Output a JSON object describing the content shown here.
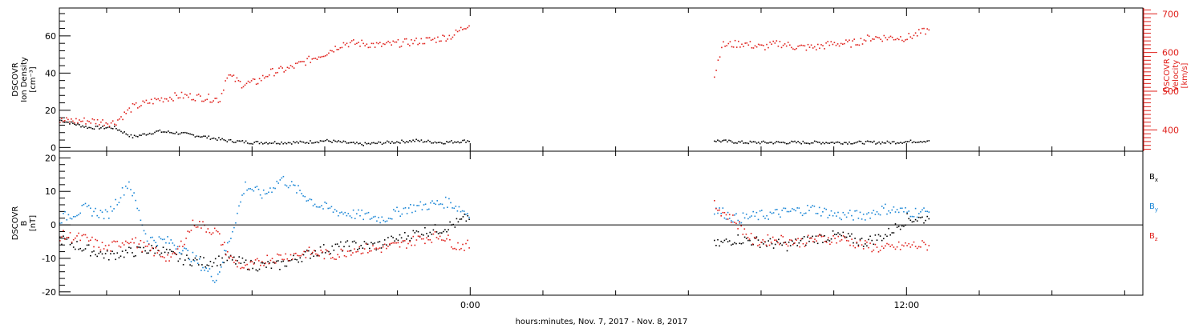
{
  "chart_data": [
    {
      "type": "scatter",
      "panel": "plasma",
      "xlabel": "hours:minutes, Nov.  7, 2017 - Nov.  8, 2017",
      "x_units": "hours relative to Nov. 8, 2017 00:00",
      "xlim": [
        -11.3,
        18.5
      ],
      "x_tick_labels": [
        {
          "x": 0,
          "label": "0:00"
        },
        {
          "x": 12,
          "label": "12:00"
        }
      ],
      "left_axis": {
        "label_lines": [
          "DSCOVR",
          "Ion Density",
          "[cm⁻³]"
        ],
        "ylim": [
          -2,
          75
        ],
        "tick_labels": [
          "0",
          "20",
          "40",
          "60"
        ],
        "color": "#000000"
      },
      "right_axis": {
        "label_lines": [
          "DSCOVR",
          "Velocity",
          "[km/s]"
        ],
        "ylim": [
          345,
          715
        ],
        "tick_labels": [
          "400",
          "500",
          "600",
          "700"
        ],
        "color": "#e0201b"
      },
      "series": [
        {
          "axis": "left",
          "color": "#000000",
          "points": [
            [
              -11.3,
              15
            ],
            [
              -10.5,
              11
            ],
            [
              -9.8,
              11
            ],
            [
              -9.3,
              6
            ],
            [
              -8.6,
              9
            ],
            [
              -8.0,
              8
            ],
            [
              -7.3,
              6
            ],
            [
              -6.7,
              4
            ],
            [
              -6.0,
              3
            ],
            [
              -5.3,
              3
            ],
            [
              -4.6,
              3
            ],
            [
              -4.0,
              4
            ],
            [
              -3.5,
              3
            ],
            [
              -3.0,
              2
            ],
            [
              -2.3,
              3
            ],
            [
              -1.5,
              4
            ],
            [
              -0.8,
              3
            ],
            [
              0.0,
              4
            ],
            [
              6.7,
              4
            ],
            [
              7.5,
              3
            ],
            [
              8.5,
              3
            ],
            [
              9.5,
              3
            ],
            [
              10.5,
              3
            ],
            [
              11.5,
              3
            ],
            [
              12.6,
              4
            ]
          ]
        },
        {
          "axis": "right",
          "color": "#e0201b",
          "points": [
            [
              -11.3,
              425
            ],
            [
              -10.5,
              425
            ],
            [
              -9.8,
              420
            ],
            [
              -9.3,
              460
            ],
            [
              -8.6,
              480
            ],
            [
              -8.0,
              490
            ],
            [
              -7.3,
              485
            ],
            [
              -6.9,
              480
            ],
            [
              -6.7,
              545
            ],
            [
              -6.3,
              520
            ],
            [
              -5.9,
              525
            ],
            [
              -5.5,
              550
            ],
            [
              -5.0,
              560
            ],
            [
              -4.5,
              580
            ],
            [
              -4.0,
              600
            ],
            [
              -3.5,
              625
            ],
            [
              -3.0,
              625
            ],
            [
              -2.5,
              620
            ],
            [
              -2.0,
              625
            ],
            [
              -1.5,
              630
            ],
            [
              -1.0,
              635
            ],
            [
              -0.5,
              645
            ],
            [
              0.0,
              680
            ],
            [
              6.7,
              540
            ],
            [
              6.9,
              620
            ],
            [
              7.5,
              625
            ],
            [
              8.0,
              615
            ],
            [
              8.5,
              625
            ],
            [
              9.0,
              615
            ],
            [
              9.5,
              615
            ],
            [
              10.0,
              625
            ],
            [
              10.5,
              625
            ],
            [
              11.0,
              640
            ],
            [
              11.5,
              640
            ],
            [
              12.0,
              640
            ],
            [
              12.6,
              660
            ]
          ]
        }
      ]
    },
    {
      "type": "scatter",
      "panel": "magnetic field",
      "xlim": [
        -11.3,
        18.5
      ],
      "left_axis": {
        "label_lines": [
          "DSCOVR",
          "B",
          "[nT]"
        ],
        "ylim": [
          -21,
          22
        ],
        "tick_labels": [
          "-20",
          "-10",
          "0",
          "10",
          "20"
        ]
      },
      "zero_line": true,
      "legend": [
        {
          "name": "B",
          "sub": "x",
          "color": "#000000"
        },
        {
          "name": "B",
          "sub": "y",
          "color": "#1a86d6"
        },
        {
          "name": "B",
          "sub": "z",
          "color": "#e0201b"
        }
      ],
      "legend_placement": "right",
      "series": [
        {
          "name": "Bx",
          "color": "#000000",
          "points": [
            [
              -11.3,
              -4
            ],
            [
              -10.6,
              -7
            ],
            [
              -10.0,
              -9
            ],
            [
              -9.4,
              -8
            ],
            [
              -8.6,
              -7
            ],
            [
              -8.0,
              -10
            ],
            [
              -7.3,
              -11
            ],
            [
              -6.7,
              -10
            ],
            [
              -6.0,
              -12
            ],
            [
              -5.3,
              -12
            ],
            [
              -4.6,
              -9
            ],
            [
              -4.0,
              -7
            ],
            [
              -3.3,
              -6
            ],
            [
              -2.6,
              -6
            ],
            [
              -2.0,
              -4
            ],
            [
              -1.4,
              -2
            ],
            [
              -0.8,
              -1
            ],
            [
              -0.3,
              1
            ],
            [
              0.0,
              3
            ],
            [
              6.7,
              -6
            ],
            [
              7.3,
              -4
            ],
            [
              8.0,
              -5
            ],
            [
              8.7,
              -6
            ],
            [
              9.4,
              -4
            ],
            [
              10.1,
              -3
            ],
            [
              10.8,
              -5
            ],
            [
              11.4,
              -3
            ],
            [
              12.0,
              2
            ],
            [
              12.6,
              2
            ]
          ]
        },
        {
          "name": "By",
          "color": "#1a86d6",
          "points": [
            [
              -11.3,
              2
            ],
            [
              -10.6,
              5
            ],
            [
              -10.0,
              3
            ],
            [
              -9.4,
              13
            ],
            [
              -8.9,
              -4
            ],
            [
              -8.2,
              -5
            ],
            [
              -7.6,
              -10
            ],
            [
              -7.0,
              -16
            ],
            [
              -6.6,
              -3
            ],
            [
              -6.2,
              12
            ],
            [
              -5.7,
              9
            ],
            [
              -5.2,
              14
            ],
            [
              -4.7,
              10
            ],
            [
              -4.2,
              6
            ],
            [
              -3.6,
              4
            ],
            [
              -3.0,
              3
            ],
            [
              -2.4,
              2
            ],
            [
              -1.8,
              5
            ],
            [
              -1.2,
              6
            ],
            [
              -0.6,
              7
            ],
            [
              0.0,
              3
            ],
            [
              6.7,
              5
            ],
            [
              7.3,
              2
            ],
            [
              8.0,
              3
            ],
            [
              8.7,
              4
            ],
            [
              9.4,
              5
            ],
            [
              10.1,
              3
            ],
            [
              10.8,
              3
            ],
            [
              11.4,
              5
            ],
            [
              12.0,
              4
            ],
            [
              12.6,
              4
            ]
          ]
        },
        {
          "name": "Bz",
          "color": "#e0201b",
          "points": [
            [
              -11.3,
              -3
            ],
            [
              -10.6,
              -4
            ],
            [
              -10.0,
              -7
            ],
            [
              -9.4,
              -4
            ],
            [
              -8.9,
              -7
            ],
            [
              -8.2,
              -10
            ],
            [
              -7.6,
              1
            ],
            [
              -7.0,
              -2
            ],
            [
              -6.6,
              -10
            ],
            [
              -6.2,
              -13
            ],
            [
              -5.6,
              -10
            ],
            [
              -5.0,
              -9
            ],
            [
              -4.4,
              -8
            ],
            [
              -3.8,
              -9
            ],
            [
              -3.2,
              -7
            ],
            [
              -2.6,
              -7
            ],
            [
              -2.0,
              -6
            ],
            [
              -1.4,
              -4
            ],
            [
              -0.8,
              -3
            ],
            [
              -0.4,
              -6
            ],
            [
              0.0,
              -6
            ],
            [
              6.7,
              6
            ],
            [
              7.3,
              1
            ],
            [
              7.8,
              -5
            ],
            [
              8.4,
              -4
            ],
            [
              9.0,
              -5
            ],
            [
              9.6,
              -4
            ],
            [
              10.2,
              -4
            ],
            [
              10.8,
              -6
            ],
            [
              11.4,
              -7
            ],
            [
              12.0,
              -6
            ],
            [
              12.6,
              -6
            ]
          ]
        }
      ]
    }
  ]
}
